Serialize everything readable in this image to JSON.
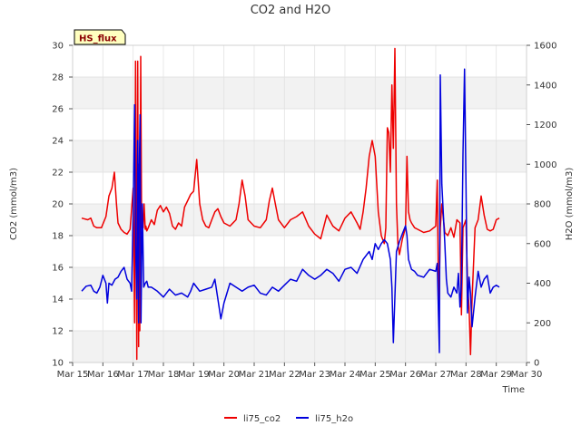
{
  "chart_data": {
    "type": "line",
    "title": "CO2 and H2O",
    "xlabel": "Time",
    "ylabel_left": "CO2 (mmol/m3)",
    "ylabel_right": "H2O (mmol/m3)",
    "badge": "HS_flux",
    "xlim": [
      15,
      30
    ],
    "ylim_left": [
      10,
      30
    ],
    "ylim_right": [
      0,
      1600
    ],
    "x_ticks": [
      15,
      16,
      17,
      18,
      19,
      20,
      21,
      22,
      23,
      24,
      25,
      26,
      27,
      28,
      29,
      30
    ],
    "x_tick_labels": [
      "Mar 15",
      "Mar 16",
      "Mar 17",
      "Mar 18",
      "Mar 19",
      "Mar 20",
      "Mar 21",
      "Mar 22",
      "Mar 23",
      "Mar 24",
      "Mar 25",
      "Mar 26",
      "Mar 27",
      "Mar 28",
      "Mar 29",
      "Mar 30"
    ],
    "y_left_ticks": [
      10,
      12,
      14,
      16,
      18,
      20,
      22,
      24,
      26,
      28,
      30
    ],
    "y_right_ticks": [
      0,
      200,
      400,
      600,
      800,
      1000,
      1200,
      1400,
      1600
    ],
    "legend": [
      "li75_co2",
      "li75_h2o"
    ],
    "legend_position": "bottom",
    "series": [
      {
        "name": "li75_co2",
        "axis": "left",
        "color": "#ee0000",
        "x": [
          15.3,
          15.5,
          15.6,
          15.7,
          15.8,
          15.95,
          16.1,
          16.2,
          16.3,
          16.38,
          16.45,
          16.5,
          16.6,
          16.7,
          16.8,
          16.9,
          17.0,
          17.05,
          17.08,
          17.12,
          17.15,
          17.18,
          17.2,
          17.22,
          17.25,
          17.28,
          17.3,
          17.33,
          17.36,
          17.4,
          17.42,
          17.45,
          17.5,
          17.6,
          17.7,
          17.8,
          17.9,
          18.0,
          18.1,
          18.2,
          18.3,
          18.4,
          18.5,
          18.6,
          18.7,
          18.8,
          18.9,
          19.0,
          19.1,
          19.2,
          19.3,
          19.4,
          19.5,
          19.6,
          19.7,
          19.8,
          19.9,
          20.0,
          20.2,
          20.4,
          20.5,
          20.6,
          20.7,
          20.8,
          21.0,
          21.2,
          21.4,
          21.5,
          21.6,
          21.7,
          21.8,
          22.0,
          22.2,
          22.4,
          22.6,
          22.8,
          23.0,
          23.2,
          23.4,
          23.6,
          23.8,
          24.0,
          24.2,
          24.4,
          24.5,
          24.6,
          24.7,
          24.8,
          24.9,
          25.0,
          25.1,
          25.2,
          25.3,
          25.35,
          25.4,
          25.45,
          25.5,
          25.55,
          25.6,
          25.65,
          25.7,
          25.75,
          25.8,
          25.9,
          26.0,
          26.05,
          26.1,
          26.15,
          26.2,
          26.3,
          26.4,
          26.6,
          26.8,
          27.0,
          27.05,
          27.1,
          27.15,
          27.2,
          27.3,
          27.4,
          27.5,
          27.6,
          27.7,
          27.8,
          27.85,
          27.9,
          28.0,
          28.05,
          28.1,
          28.15,
          28.2,
          28.3,
          28.4,
          28.5,
          28.6,
          28.7,
          28.8,
          28.9,
          29.0,
          29.1
        ],
        "values": [
          19.1,
          19.0,
          19.1,
          18.6,
          18.5,
          18.5,
          19.2,
          20.5,
          21.0,
          22.0,
          20.0,
          18.8,
          18.4,
          18.2,
          18.1,
          18.4,
          21.0,
          12.5,
          29.0,
          10.2,
          29.0,
          11.0,
          22.5,
          12.0,
          29.3,
          18.5,
          19.0,
          18.5,
          20.0,
          18.4,
          18.6,
          18.3,
          18.5,
          19.0,
          18.7,
          19.6,
          19.9,
          19.5,
          19.8,
          19.4,
          18.6,
          18.4,
          18.8,
          18.6,
          19.8,
          20.2,
          20.6,
          20.8,
          22.8,
          20.0,
          19.0,
          18.6,
          18.5,
          19.0,
          19.5,
          19.7,
          19.2,
          18.8,
          18.6,
          19.0,
          20.0,
          21.5,
          20.5,
          19.0,
          18.6,
          18.5,
          19.0,
          20.2,
          21.0,
          20.0,
          19.0,
          18.5,
          19.0,
          19.2,
          19.5,
          18.6,
          18.1,
          17.8,
          19.3,
          18.6,
          18.3,
          19.1,
          19.5,
          18.8,
          18.4,
          19.5,
          21.0,
          23.0,
          24.0,
          23.0,
          19.5,
          18.0,
          17.5,
          18.5,
          24.8,
          24.5,
          22.0,
          27.5,
          23.5,
          29.8,
          20.0,
          17.5,
          16.8,
          17.8,
          18.5,
          23.0,
          19.5,
          19.0,
          18.8,
          18.5,
          18.4,
          18.2,
          18.3,
          18.6,
          21.5,
          12.5,
          18.5,
          20.0,
          18.2,
          18.0,
          18.5,
          17.9,
          19.0,
          18.8,
          13.0,
          18.5,
          19.0,
          15.0,
          13.5,
          10.5,
          14.0,
          18.5,
          19.0,
          20.5,
          19.3,
          18.4,
          18.3,
          18.4,
          19.0,
          19.1
        ]
      },
      {
        "name": "li75_h2o",
        "axis": "right",
        "color": "#0000dd",
        "x": [
          15.3,
          15.45,
          15.6,
          15.7,
          15.8,
          15.9,
          16.0,
          16.1,
          16.15,
          16.2,
          16.3,
          16.4,
          16.5,
          16.6,
          16.7,
          16.8,
          16.9,
          16.95,
          17.0,
          17.05,
          17.08,
          17.12,
          17.15,
          17.18,
          17.2,
          17.23,
          17.26,
          17.3,
          17.35,
          17.4,
          17.45,
          17.5,
          17.6,
          17.8,
          18.0,
          18.2,
          18.4,
          18.6,
          18.8,
          18.9,
          19.0,
          19.2,
          19.4,
          19.6,
          19.7,
          19.8,
          19.9,
          20.0,
          20.2,
          20.4,
          20.6,
          20.8,
          21.0,
          21.2,
          21.4,
          21.6,
          21.8,
          22.0,
          22.2,
          22.4,
          22.6,
          22.8,
          23.0,
          23.2,
          23.4,
          23.6,
          23.8,
          24.0,
          24.2,
          24.4,
          24.6,
          24.8,
          24.9,
          25.0,
          25.1,
          25.2,
          25.3,
          25.4,
          25.5,
          25.55,
          25.6,
          25.7,
          25.8,
          25.9,
          26.0,
          26.05,
          26.1,
          26.2,
          26.3,
          26.4,
          26.6,
          26.8,
          27.0,
          27.05,
          27.1,
          27.12,
          27.15,
          27.2,
          27.3,
          27.35,
          27.4,
          27.5,
          27.6,
          27.7,
          27.75,
          27.8,
          27.85,
          27.9,
          27.95,
          28.0,
          28.05,
          28.1,
          28.15,
          28.2,
          28.3,
          28.4,
          28.5,
          28.6,
          28.7,
          28.8,
          28.9,
          29.0,
          29.1
        ],
        "values": [
          360,
          385,
          390,
          360,
          350,
          380,
          440,
          400,
          300,
          400,
          390,
          420,
          430,
          460,
          480,
          420,
          400,
          360,
          760,
          1300,
          600,
          320,
          1120,
          200,
          930,
          1250,
          200,
          800,
          380,
          400,
          410,
          380,
          380,
          360,
          330,
          370,
          340,
          350,
          330,
          360,
          400,
          360,
          370,
          380,
          420,
          320,
          220,
          300,
          400,
          380,
          360,
          380,
          390,
          350,
          340,
          380,
          360,
          390,
          420,
          410,
          470,
          440,
          420,
          440,
          470,
          450,
          410,
          470,
          480,
          450,
          520,
          560,
          520,
          600,
          570,
          600,
          620,
          600,
          520,
          380,
          100,
          560,
          610,
          650,
          690,
          640,
          520,
          470,
          460,
          440,
          430,
          470,
          460,
          500,
          180,
          50,
          1450,
          900,
          600,
          420,
          350,
          330,
          380,
          350,
          450,
          280,
          400,
          1050,
          1480,
          900,
          250,
          430,
          350,
          180,
          330,
          460,
          380,
          420,
          440,
          350,
          380,
          390,
          380
        ]
      }
    ]
  }
}
